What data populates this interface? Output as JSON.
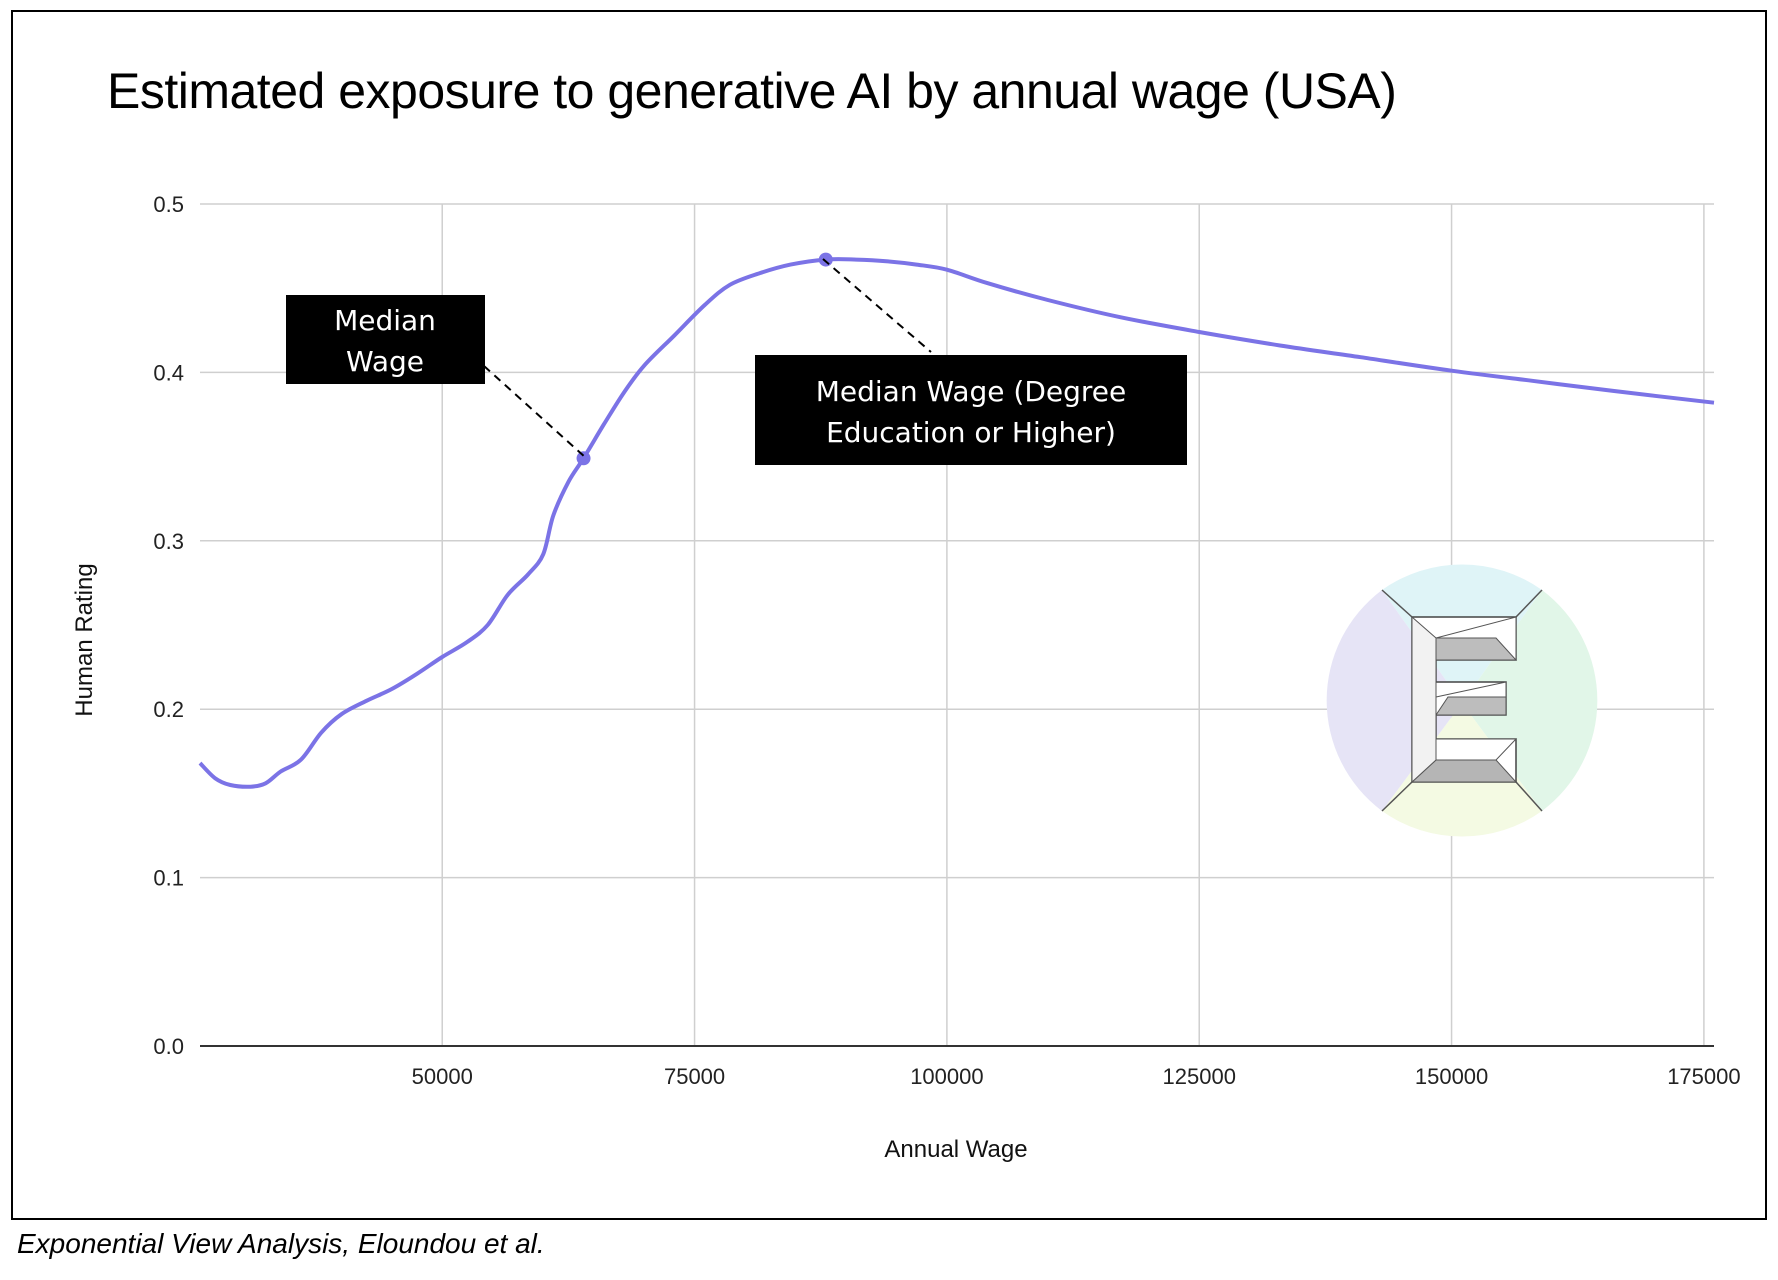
{
  "page": {
    "title": "Estimated exposure to generative AI by annual wage (USA)",
    "caption": "Exponential View Analysis, Eloundou et al."
  },
  "chart_data": {
    "type": "line",
    "title": "Estimated exposure to generative AI by annual wage (USA)",
    "xlabel": "Annual Wage",
    "ylabel": "Human Rating",
    "xlim": [
      26000,
      176000
    ],
    "ylim": [
      0,
      0.5
    ],
    "x_ticks": [
      50000,
      75000,
      100000,
      125000,
      150000,
      175000
    ],
    "y_ticks": [
      0.0,
      0.1,
      0.2,
      0.3,
      0.4,
      0.5
    ],
    "x_tick_labels": [
      "50000",
      "75000",
      "100000",
      "125000",
      "150000",
      "175000"
    ],
    "y_tick_labels": [
      "0.0",
      "0.1",
      "0.2",
      "0.3",
      "0.4",
      "0.5"
    ],
    "grid": true,
    "legend": "none",
    "series_color": "#7b73e6",
    "series": [
      {
        "points": [
          [
            26000,
            0.168
          ],
          [
            27500,
            0.159
          ],
          [
            29000,
            0.155
          ],
          [
            31000,
            0.154
          ],
          [
            32500,
            0.156
          ],
          [
            34000,
            0.163
          ],
          [
            36000,
            0.17
          ],
          [
            38000,
            0.186
          ],
          [
            40000,
            0.197
          ],
          [
            42500,
            0.205
          ],
          [
            45000,
            0.212
          ],
          [
            47500,
            0.221
          ],
          [
            50000,
            0.231
          ],
          [
            52500,
            0.24
          ],
          [
            54500,
            0.25
          ],
          [
            56500,
            0.268
          ],
          [
            58500,
            0.28
          ],
          [
            60000,
            0.292
          ],
          [
            61000,
            0.315
          ],
          [
            62500,
            0.335
          ],
          [
            64000,
            0.349
          ],
          [
            66000,
            0.369
          ],
          [
            68000,
            0.388
          ],
          [
            70000,
            0.404
          ],
          [
            73000,
            0.422
          ],
          [
            76000,
            0.44
          ],
          [
            78500,
            0.452
          ],
          [
            81500,
            0.459
          ],
          [
            84500,
            0.464
          ],
          [
            88000,
            0.467
          ],
          [
            91000,
            0.467
          ],
          [
            94000,
            0.466
          ],
          [
            97000,
            0.464
          ],
          [
            100000,
            0.461
          ],
          [
            104000,
            0.453
          ],
          [
            110000,
            0.443
          ],
          [
            117000,
            0.433
          ],
          [
            125000,
            0.424
          ],
          [
            133000,
            0.416
          ],
          [
            141000,
            0.409
          ],
          [
            150000,
            0.401
          ],
          [
            158000,
            0.395
          ],
          [
            166000,
            0.389
          ],
          [
            176000,
            0.382
          ]
        ]
      }
    ],
    "markers": [
      {
        "x": 64000,
        "y": 0.349
      },
      {
        "x": 88000,
        "y": 0.467
      }
    ],
    "annotations": [
      {
        "lines": [
          "Median",
          "Wage"
        ]
      },
      {
        "lines": [
          "Median Wage (Degree",
          "Education or Higher)"
        ]
      }
    ]
  },
  "logo": {
    "name": "exponential-view-logo",
    "colors": {
      "top": "#dff4f7",
      "right": "#e1f6e8",
      "bottom": "#f4fae3",
      "left": "#e6e4f6"
    }
  }
}
